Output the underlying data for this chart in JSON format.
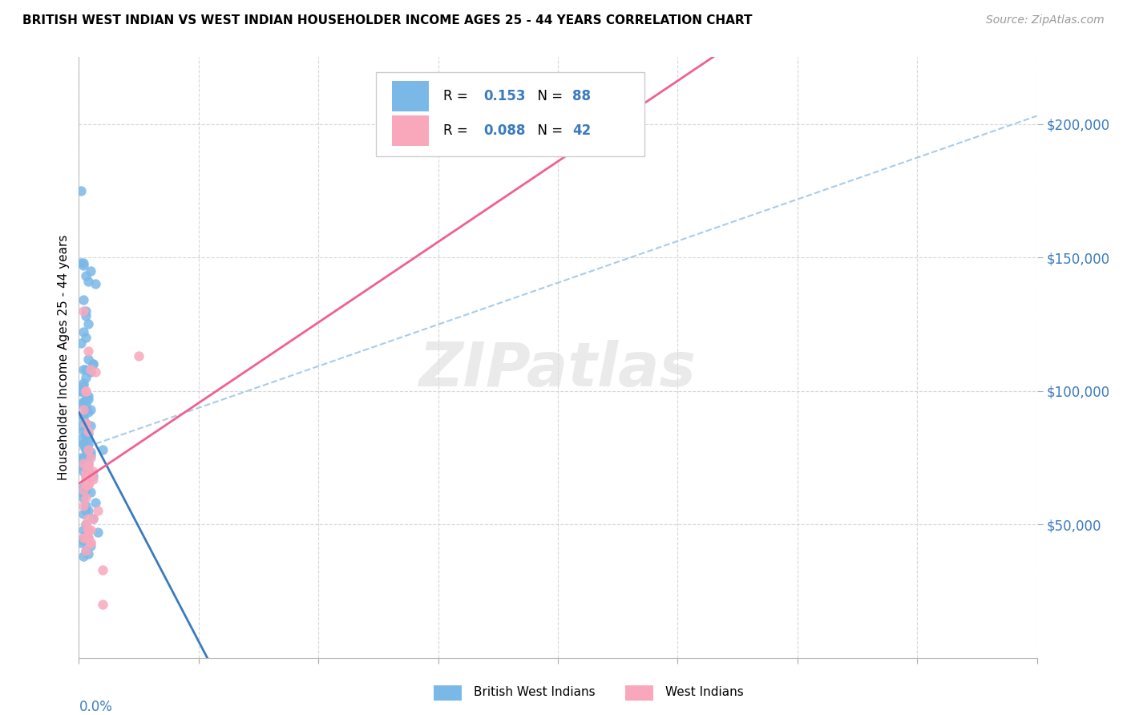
{
  "title": "BRITISH WEST INDIAN VS WEST INDIAN HOUSEHOLDER INCOME AGES 25 - 44 YEARS CORRELATION CHART",
  "source": "Source: ZipAtlas.com",
  "ylabel": "Householder Income Ages 25 - 44 years",
  "ytick_values": [
    50000,
    100000,
    150000,
    200000
  ],
  "xlim": [
    0.0,
    0.4
  ],
  "ylim": [
    0,
    225000
  ],
  "legend1_R": "0.153",
  "legend1_N": "88",
  "legend2_R": "0.088",
  "legend2_N": "42",
  "color_blue": "#7ab8e8",
  "color_pink": "#f9a8bc",
  "color_blue_line": "#3a7abf",
  "color_pink_line": "#f06090",
  "color_dashed_line": "#a8cce8",
  "bwi_x": [
    0.001,
    0.002,
    0.002,
    0.001,
    0.003,
    0.004,
    0.002,
    0.005,
    0.003,
    0.007,
    0.003,
    0.004,
    0.002,
    0.003,
    0.001,
    0.005,
    0.006,
    0.003,
    0.002,
    0.004,
    0.006,
    0.003,
    0.002,
    0.001,
    0.004,
    0.003,
    0.002,
    0.001,
    0.003,
    0.004,
    0.002,
    0.003,
    0.005,
    0.002,
    0.004,
    0.003,
    0.001,
    0.002,
    0.004,
    0.003,
    0.005,
    0.002,
    0.003,
    0.001,
    0.004,
    0.002,
    0.003,
    0.006,
    0.004,
    0.002,
    0.003,
    0.001,
    0.005,
    0.002,
    0.007,
    0.003,
    0.004,
    0.002,
    0.006,
    0.003,
    0.002,
    0.008,
    0.003,
    0.004,
    0.002,
    0.001,
    0.005,
    0.003,
    0.004,
    0.002,
    0.01,
    0.003,
    0.002,
    0.004,
    0.003,
    0.001,
    0.002,
    0.005,
    0.003,
    0.004,
    0.001,
    0.002,
    0.003,
    0.002,
    0.004,
    0.003,
    0.001,
    0.005
  ],
  "bwi_y": [
    175000,
    148000,
    147000,
    148000,
    143000,
    141000,
    134000,
    145000,
    130000,
    140000,
    128000,
    125000,
    122000,
    120000,
    118000,
    107000,
    110000,
    108000,
    108000,
    112000,
    110000,
    105000,
    102000,
    100000,
    98000,
    97000,
    96000,
    95000,
    93000,
    92000,
    90000,
    88000,
    87000,
    85000,
    84000,
    83000,
    82000,
    80000,
    80000,
    78000,
    76000,
    75000,
    74000,
    72000,
    70000,
    70000,
    68000,
    68000,
    65000,
    64000,
    63000,
    62000,
    62000,
    60000,
    58000,
    57000,
    55000,
    54000,
    52000,
    50000,
    48000,
    47000,
    46000,
    45000,
    44000,
    43000,
    42000,
    40000,
    39000,
    38000,
    78000,
    78000,
    80000,
    82000,
    84000,
    87000,
    91000,
    93000,
    95000,
    97000,
    100000,
    103000,
    55000,
    45000,
    73000,
    73000,
    75000,
    77000
  ],
  "wi_x": [
    0.002,
    0.004,
    0.003,
    0.002,
    0.005,
    0.003,
    0.004,
    0.002,
    0.003,
    0.005,
    0.004,
    0.003,
    0.002,
    0.008,
    0.004,
    0.006,
    0.003,
    0.004,
    0.002,
    0.005,
    0.003,
    0.004,
    0.006,
    0.003,
    0.002,
    0.01,
    0.004,
    0.003,
    0.005,
    0.006,
    0.004,
    0.003,
    0.004,
    0.003,
    0.005,
    0.025,
    0.007,
    0.004,
    0.005,
    0.01,
    0.003,
    0.004
  ],
  "wi_y": [
    130000,
    115000,
    100000,
    93000,
    108000,
    88000,
    78000,
    73000,
    70000,
    68000,
    65000,
    60000,
    57000,
    55000,
    52000,
    52000,
    50000,
    48000,
    45000,
    43000,
    40000,
    72000,
    70000,
    67000,
    63000,
    20000,
    48000,
    45000,
    43000,
    67000,
    65000,
    65000,
    85000,
    100000,
    48000,
    113000,
    107000,
    45000,
    75000,
    33000,
    68000,
    72000
  ]
}
